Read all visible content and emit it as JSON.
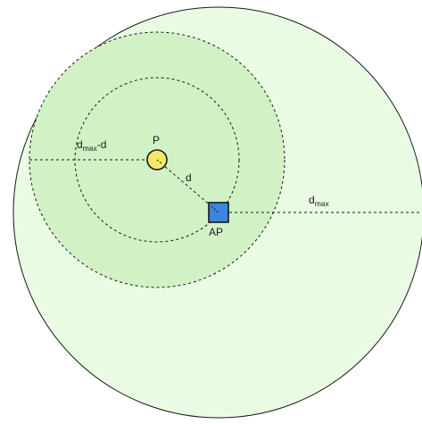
{
  "labels": {
    "point": "P",
    "access_point": "AP",
    "distance": "d",
    "outer_radius": "d",
    "outer_radius_subscript": "max",
    "inner_radius_prefix": "d",
    "inner_radius_subscript": "max",
    "inner_radius_suffix": "-d"
  },
  "colors": {
    "outer_fill": "#eafbe3",
    "inner_fill": "#d2f2c6",
    "point_fill": "#f5e86a",
    "access_point_fill": "#3a86e0",
    "stroke": "#1a1a1a"
  }
}
